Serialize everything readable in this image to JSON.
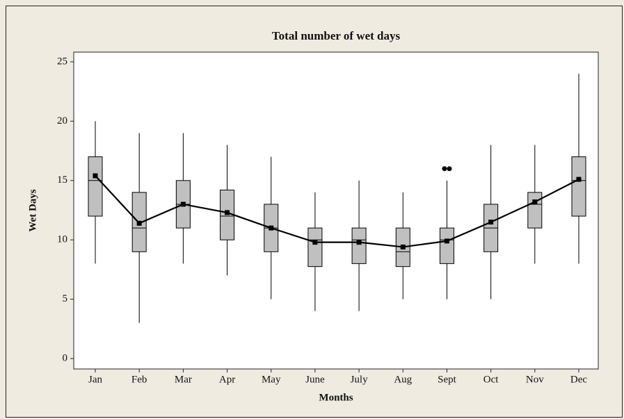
{
  "chart_data": {
    "type": "box",
    "title": "Total number of wet days",
    "x_label": "Months",
    "y_label": "Wet Days",
    "categories": [
      "Jan",
      "Feb",
      "Mar",
      "Apr",
      "May",
      "June",
      "July",
      "Aug",
      "Sept",
      "Oct",
      "Nov",
      "Dec"
    ],
    "boxes": [
      {
        "min": 8,
        "q1": 12,
        "median": 15,
        "q3": 17,
        "max": 20,
        "mean": 15.4,
        "outliers": []
      },
      {
        "min": 3,
        "q1": 9,
        "median": 11,
        "q3": 14,
        "max": 19,
        "mean": 11.4,
        "outliers": []
      },
      {
        "min": 8,
        "q1": 11,
        "median": 13,
        "q3": 15,
        "max": 19,
        "mean": 13.0,
        "outliers": []
      },
      {
        "min": 7,
        "q1": 10,
        "median": 12,
        "q3": 14.2,
        "max": 18,
        "mean": 12.3,
        "outliers": []
      },
      {
        "min": 5,
        "q1": 9,
        "median": 11,
        "q3": 13,
        "max": 17,
        "mean": 11.0,
        "outliers": []
      },
      {
        "min": 4,
        "q1": 7.75,
        "median": 10,
        "q3": 11,
        "max": 14,
        "mean": 9.8,
        "outliers": []
      },
      {
        "min": 4,
        "q1": 8,
        "median": 10,
        "q3": 11,
        "max": 15,
        "mean": 9.8,
        "outliers": []
      },
      {
        "min": 5,
        "q1": 7.75,
        "median": 9,
        "q3": 11,
        "max": 14,
        "mean": 9.4,
        "outliers": []
      },
      {
        "min": 5,
        "q1": 8,
        "median": 10,
        "q3": 11,
        "max": 15,
        "mean": 9.9,
        "outliers": [
          16,
          16
        ]
      },
      {
        "min": 5,
        "q1": 9,
        "median": 11,
        "q3": 13,
        "max": 18,
        "mean": 11.5,
        "outliers": []
      },
      {
        "min": 8,
        "q1": 11,
        "median": 13,
        "q3": 14,
        "max": 18,
        "mean": 13.2,
        "outliers": []
      },
      {
        "min": 8,
        "q1": 12,
        "median": 15,
        "q3": 17,
        "max": 24,
        "mean": 15.1,
        "outliers": []
      }
    ],
    "box_color": "#c0c0c0",
    "line_color": "#000000",
    "ylim": [
      0,
      25
    ],
    "yticks": [
      0,
      5,
      10,
      15,
      20,
      25
    ],
    "grid": false
  }
}
